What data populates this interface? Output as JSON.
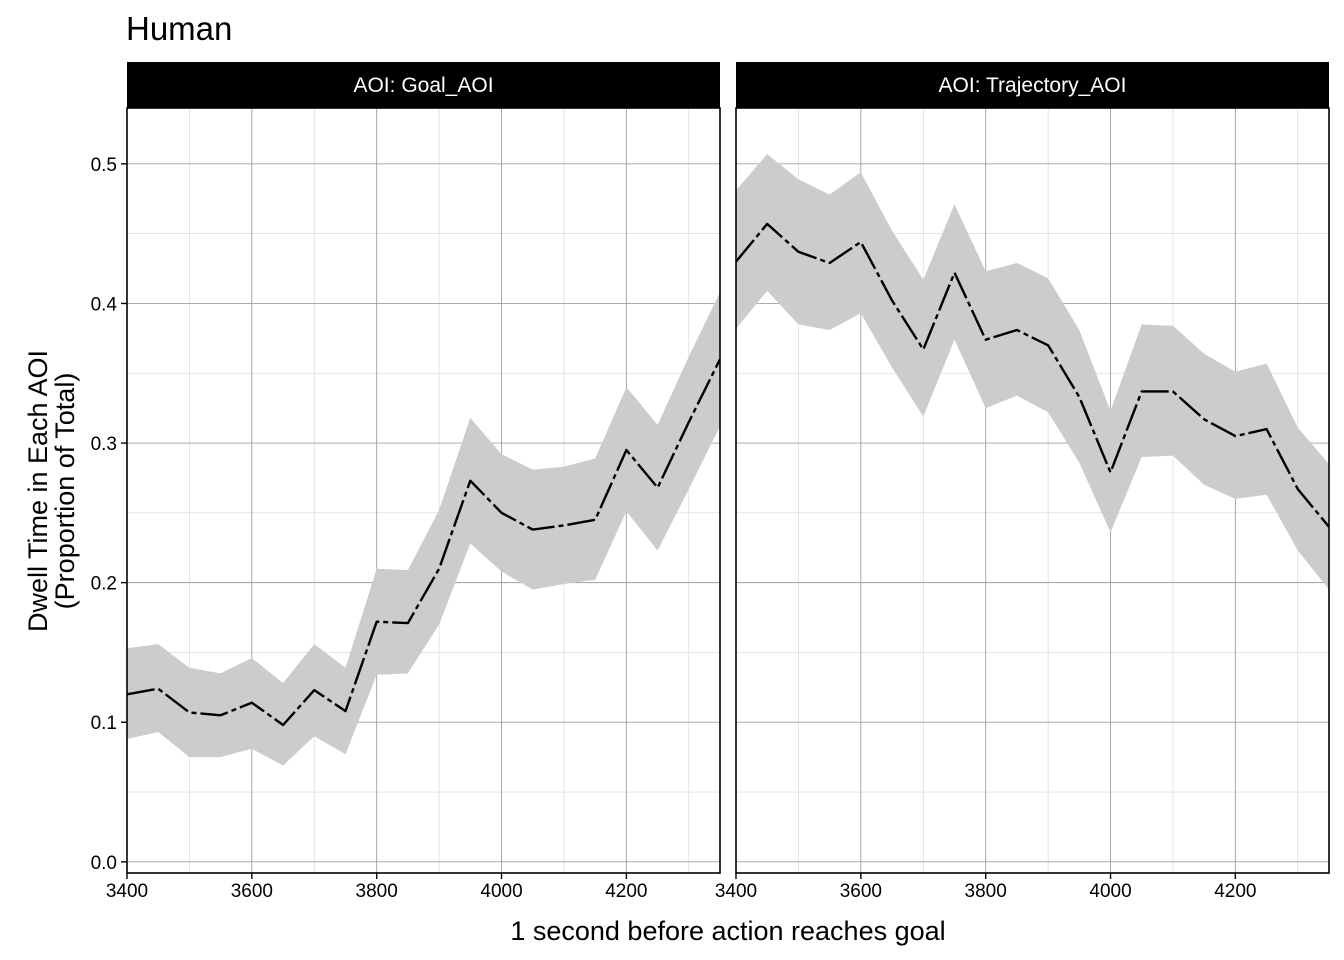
{
  "chart_data": {
    "type": "line",
    "title": "Human",
    "xlabel": "1 second before action reaches goal",
    "ylabel": [
      "Dwell Time in Each AOI",
      "(Proportion of Total)"
    ],
    "xlim": [
      3400,
      4350
    ],
    "ylim": [
      -0.008,
      0.54
    ],
    "x_ticks": [
      3400,
      3600,
      3800,
      4000,
      4200
    ],
    "y_ticks": [
      0.0,
      0.1,
      0.2,
      0.3,
      0.4,
      0.5
    ],
    "y_tick_labels": [
      "0.0",
      "0.1",
      "0.2",
      "0.3",
      "0.4",
      "0.5"
    ],
    "grid": true,
    "line_color": "#000000",
    "ribbon_color": "#cccccc",
    "strip_color": "#000000",
    "panels": [
      {
        "strip": "AOI:  Goal_AOI",
        "x": [
          3400,
          3450,
          3500,
          3550,
          3600,
          3650,
          3700,
          3750,
          3800,
          3850,
          3900,
          3950,
          4000,
          4050,
          4100,
          4150,
          4200,
          4250,
          4300,
          4350
        ],
        "y": [
          0.12,
          0.124,
          0.107,
          0.105,
          0.114,
          0.098,
          0.123,
          0.108,
          0.172,
          0.171,
          0.21,
          0.273,
          0.25,
          0.238,
          0.241,
          0.245,
          0.295,
          0.268,
          0.315,
          0.36
        ],
        "lower": [
          0.088,
          0.093,
          0.075,
          0.075,
          0.081,
          0.069,
          0.09,
          0.077,
          0.134,
          0.135,
          0.17,
          0.228,
          0.208,
          0.195,
          0.199,
          0.202,
          0.251,
          0.223,
          0.267,
          0.312
        ],
        "upper": [
          0.153,
          0.156,
          0.139,
          0.135,
          0.146,
          0.128,
          0.156,
          0.139,
          0.21,
          0.209,
          0.252,
          0.318,
          0.292,
          0.281,
          0.283,
          0.289,
          0.34,
          0.313,
          0.362,
          0.408
        ]
      },
      {
        "strip": "AOI:  Trajectory_AOI",
        "x": [
          3400,
          3450,
          3500,
          3550,
          3600,
          3650,
          3700,
          3750,
          3800,
          3850,
          3900,
          3950,
          4000,
          4050,
          4100,
          4150,
          4200,
          4250,
          4300,
          4350
        ],
        "y": [
          0.43,
          0.457,
          0.437,
          0.429,
          0.444,
          0.402,
          0.367,
          0.422,
          0.374,
          0.381,
          0.37,
          0.333,
          0.279,
          0.337,
          0.337,
          0.317,
          0.305,
          0.31,
          0.267,
          0.24
        ],
        "lower": [
          0.382,
          0.409,
          0.385,
          0.381,
          0.393,
          0.354,
          0.319,
          0.374,
          0.325,
          0.334,
          0.322,
          0.286,
          0.236,
          0.29,
          0.291,
          0.27,
          0.26,
          0.263,
          0.223,
          0.195
        ],
        "upper": [
          0.481,
          0.507,
          0.489,
          0.478,
          0.494,
          0.452,
          0.417,
          0.471,
          0.423,
          0.429,
          0.418,
          0.381,
          0.323,
          0.385,
          0.384,
          0.364,
          0.351,
          0.357,
          0.311,
          0.285
        ]
      }
    ]
  }
}
